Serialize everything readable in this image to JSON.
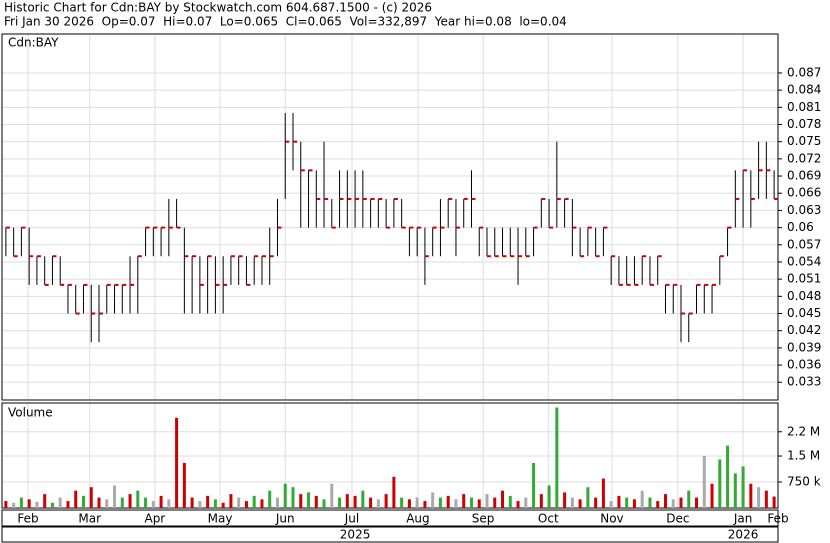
{
  "header": {
    "title": "Historic Chart for Cdn:BAY by Stockwatch.com 604.687.1500 - (c) 2026",
    "quote": "Fri Jan 30 2026  Op=0.07  Hi=0.07  Lo=0.065  Cl=0.065  Vol=332,897  Year hi=0.08  lo=0.04"
  },
  "chart_data": [
    {
      "type": "hlc",
      "label": "Cdn:BAY",
      "bar_color": "#000000",
      "close_color": "#cc0000",
      "grid": true,
      "xlim": [
        -0.5,
        99.5
      ],
      "ylim": [
        0.0299,
        0.0938
      ],
      "yticks": [
        0.033,
        0.036,
        0.039,
        0.042,
        0.045,
        0.048,
        0.051,
        0.054,
        0.057,
        0.06,
        0.063,
        0.066,
        0.069,
        0.072,
        0.075,
        0.078,
        0.081,
        0.084,
        0.087
      ],
      "high": [
        0.06,
        0.06,
        0.06,
        0.06,
        0.055,
        0.055,
        0.055,
        0.055,
        0.05,
        0.05,
        0.05,
        0.05,
        0.05,
        0.05,
        0.05,
        0.05,
        0.055,
        0.055,
        0.06,
        0.06,
        0.06,
        0.065,
        0.065,
        0.06,
        0.055,
        0.055,
        0.055,
        0.055,
        0.055,
        0.055,
        0.055,
        0.055,
        0.055,
        0.055,
        0.06,
        0.065,
        0.08,
        0.08,
        0.075,
        0.07,
        0.07,
        0.075,
        0.065,
        0.07,
        0.07,
        0.07,
        0.07,
        0.065,
        0.065,
        0.065,
        0.065,
        0.065,
        0.06,
        0.06,
        0.06,
        0.06,
        0.065,
        0.065,
        0.065,
        0.065,
        0.07,
        0.06,
        0.06,
        0.06,
        0.06,
        0.06,
        0.06,
        0.06,
        0.06,
        0.065,
        0.065,
        0.075,
        0.065,
        0.065,
        0.06,
        0.06,
        0.06,
        0.06,
        0.055,
        0.055,
        0.055,
        0.055,
        0.055,
        0.055,
        0.055,
        0.05,
        0.05,
        0.05,
        0.045,
        0.05,
        0.05,
        0.05,
        0.055,
        0.06,
        0.07,
        0.07,
        0.07,
        0.075,
        0.075,
        0.07
      ],
      "low": [
        0.055,
        0.055,
        0.055,
        0.05,
        0.05,
        0.05,
        0.05,
        0.05,
        0.045,
        0.045,
        0.045,
        0.04,
        0.04,
        0.045,
        0.045,
        0.045,
        0.045,
        0.045,
        0.055,
        0.055,
        0.055,
        0.055,
        0.06,
        0.045,
        0.045,
        0.045,
        0.045,
        0.045,
        0.045,
        0.05,
        0.05,
        0.05,
        0.05,
        0.05,
        0.05,
        0.055,
        0.065,
        0.07,
        0.06,
        0.06,
        0.06,
        0.06,
        0.06,
        0.06,
        0.06,
        0.06,
        0.06,
        0.06,
        0.06,
        0.06,
        0.06,
        0.06,
        0.055,
        0.055,
        0.05,
        0.055,
        0.055,
        0.06,
        0.055,
        0.06,
        0.06,
        0.055,
        0.055,
        0.055,
        0.055,
        0.055,
        0.05,
        0.055,
        0.055,
        0.06,
        0.06,
        0.06,
        0.06,
        0.055,
        0.055,
        0.055,
        0.055,
        0.055,
        0.05,
        0.05,
        0.05,
        0.05,
        0.05,
        0.05,
        0.05,
        0.045,
        0.045,
        0.04,
        0.04,
        0.045,
        0.045,
        0.045,
        0.05,
        0.055,
        0.06,
        0.06,
        0.06,
        0.065,
        0.065,
        0.065
      ],
      "close": [
        0.06,
        0.055,
        0.06,
        0.055,
        0.055,
        0.05,
        0.055,
        0.05,
        0.05,
        0.045,
        0.05,
        0.045,
        0.045,
        0.05,
        0.05,
        0.05,
        0.05,
        0.055,
        0.06,
        0.06,
        0.06,
        0.06,
        0.06,
        0.055,
        0.055,
        0.05,
        0.055,
        0.05,
        0.05,
        0.055,
        0.055,
        0.05,
        0.055,
        0.055,
        0.055,
        0.06,
        0.075,
        0.075,
        0.07,
        0.07,
        0.065,
        0.065,
        0.06,
        0.065,
        0.065,
        0.065,
        0.065,
        0.065,
        0.065,
        0.06,
        0.065,
        0.06,
        0.06,
        0.06,
        0.055,
        0.06,
        0.06,
        0.065,
        0.06,
        0.065,
        0.065,
        0.06,
        0.055,
        0.055,
        0.055,
        0.055,
        0.055,
        0.055,
        0.06,
        0.065,
        0.06,
        0.065,
        0.065,
        0.06,
        0.055,
        0.06,
        0.055,
        0.06,
        0.055,
        0.05,
        0.05,
        0.05,
        0.055,
        0.05,
        0.055,
        0.05,
        0.05,
        0.045,
        0.045,
        0.05,
        0.05,
        0.05,
        0.055,
        0.06,
        0.065,
        0.07,
        0.065,
        0.07,
        0.07,
        0.065
      ]
    },
    {
      "type": "bar",
      "label": "Volume",
      "grid": true,
      "xlim": [
        -0.5,
        99.5
      ],
      "ylim": [
        0,
        3030000
      ],
      "yticks": [
        {
          "value": 750000,
          "label": "750 k"
        },
        {
          "value": 1500000,
          "label": "1.5 M"
        },
        {
          "value": 2200000,
          "label": "2.2 M"
        }
      ],
      "xticks": [
        {
          "value": 2.85,
          "label": "Feb"
        },
        {
          "value": 10.8,
          "label": "Mar"
        },
        {
          "value": 19.2,
          "label": "Apr"
        },
        {
          "value": 27.6,
          "label": "May"
        },
        {
          "value": 36,
          "label": "Jun"
        },
        {
          "value": 44.6,
          "label": "Jul"
        },
        {
          "value": 53.1,
          "label": "Aug"
        },
        {
          "value": 61.5,
          "label": "Sep"
        },
        {
          "value": 69.9,
          "label": "Oct"
        },
        {
          "value": 78.1,
          "label": "Nov"
        },
        {
          "value": 86.6,
          "label": "Dec"
        },
        {
          "value": 95,
          "label": "Jan"
        },
        {
          "value": 99.5,
          "label": "Feb"
        }
      ],
      "year_ticks": [
        {
          "value": 45,
          "label": "2025"
        },
        {
          "value": 95,
          "label": "2026"
        }
      ],
      "values": [
        200000,
        150000,
        300000,
        250000,
        180000,
        400000,
        150000,
        300000,
        200000,
        500000,
        350000,
        600000,
        300000,
        250000,
        650000,
        300000,
        400000,
        500000,
        300000,
        200000,
        350000,
        250000,
        2600000,
        1300000,
        300000,
        200000,
        350000,
        250000,
        150000,
        400000,
        300000,
        200000,
        350000,
        250000,
        500000,
        300000,
        700000,
        600000,
        400000,
        450000,
        350000,
        250000,
        700000,
        300000,
        400000,
        350000,
        500000,
        300000,
        250000,
        400000,
        900000,
        300000,
        250000,
        300000,
        200000,
        450000,
        300000,
        350000,
        250000,
        400000,
        300000,
        250000,
        400000,
        300000,
        500000,
        350000,
        200000,
        300000,
        1300000,
        400000,
        650000,
        2900000,
        450000,
        300000,
        250000,
        600000,
        300000,
        850000,
        200000,
        350000,
        300000,
        250000,
        500000,
        300000,
        200000,
        400000,
        250000,
        300000,
        500000,
        300000,
        1500000,
        700000,
        1400000,
        1800000,
        1000000,
        1200000,
        700000,
        600000,
        500000,
        330000
      ],
      "colors": [
        "#cc0000",
        "#aaaaaa",
        "#33aa33",
        "#cc0000",
        "#aaaaaa",
        "#cc0000",
        "#33aa33",
        "#aaaaaa",
        "#cc0000",
        "#cc0000",
        "#33aa33",
        "#cc0000",
        "#cc0000",
        "#aaaaaa",
        "#aaaaaa",
        "#33aa33",
        "#cc0000",
        "#33aa33",
        "#33aa33",
        "#aaaaaa",
        "#cc0000",
        "#aaaaaa",
        "#cc0000",
        "#cc0000",
        "#cc0000",
        "#aaaaaa",
        "#cc0000",
        "#33aa33",
        "#cc0000",
        "#cc0000",
        "#aaaaaa",
        "#cc0000",
        "#33aa33",
        "#cc0000",
        "#33aa33",
        "#aaaaaa",
        "#33aa33",
        "#33aa33",
        "#cc0000",
        "#33aa33",
        "#cc0000",
        "#33aa33",
        "#aaaaaa",
        "#33aa33",
        "#cc0000",
        "#cc0000",
        "#33aa33",
        "#cc0000",
        "#aaaaaa",
        "#cc0000",
        "#cc0000",
        "#33aa33",
        "#cc0000",
        "#aaaaaa",
        "#cc0000",
        "#aaaaaa",
        "#33aa33",
        "#cc0000",
        "#aaaaaa",
        "#cc0000",
        "#33aa33",
        "#cc0000",
        "#aaaaaa",
        "#cc0000",
        "#cc0000",
        "#33aa33",
        "#cc0000",
        "#aaaaaa",
        "#33aa33",
        "#cc0000",
        "#33aa33",
        "#33aa33",
        "#cc0000",
        "#aaaaaa",
        "#cc0000",
        "#33aa33",
        "#cc0000",
        "#cc0000",
        "#aaaaaa",
        "#cc0000",
        "#33aa33",
        "#cc0000",
        "#aaaaaa",
        "#33aa33",
        "#cc0000",
        "#cc0000",
        "#aaaaaa",
        "#cc0000",
        "#33aa33",
        "#cc0000",
        "#aaaaaa",
        "#cc0000",
        "#33aa33",
        "#33aa33",
        "#33aa33",
        "#33aa33",
        "#cc0000",
        "#aaaaaa",
        "#cc0000",
        "#cc0000"
      ]
    }
  ]
}
